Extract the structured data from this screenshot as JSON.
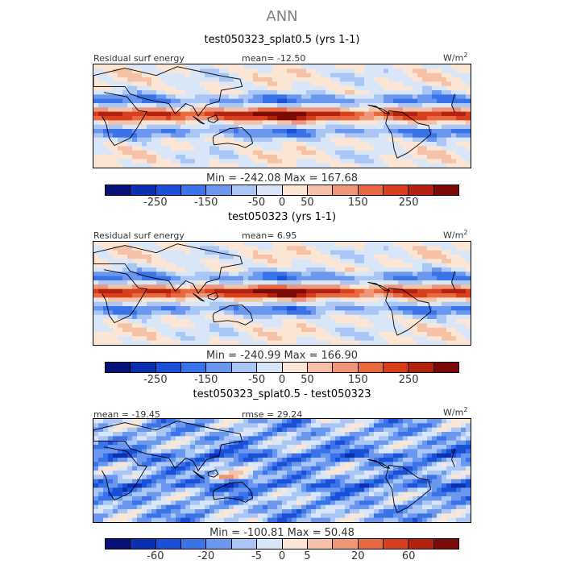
{
  "figure_title": "ANN",
  "palette": [
    "#08107a",
    "#0a2fb0",
    "#1a4fd8",
    "#3a72e8",
    "#6b97ef",
    "#a9c6f4",
    "#d8e6f8",
    "#fbe6d6",
    "#f6c2a7",
    "#ef957a",
    "#e8683f",
    "#d8401d",
    "#b3220f",
    "#7d0a05"
  ],
  "panels": [
    {
      "title": "test050323_splat0.5 (yrs 1-1)",
      "left_label": "Residual surf energy",
      "center_label": "mean=  -12.50",
      "units": "W/m",
      "units_sup": "2",
      "minmax": "Min = -242.08  Max = 167.68",
      "colorbar_ticks": [
        "-250",
        "-150",
        "-50",
        "0",
        "50",
        "150",
        "250"
      ],
      "kind": "field"
    },
    {
      "title": "test050323 (yrs 1-1)",
      "left_label": "Residual surf energy",
      "center_label": "mean=    6.95",
      "units": "W/m",
      "units_sup": "2",
      "minmax": "Min = -240.99  Max = 166.90",
      "colorbar_ticks": [
        "-250",
        "-150",
        "-50",
        "0",
        "50",
        "150",
        "250"
      ],
      "kind": "field"
    },
    {
      "title": "test050323_splat0.5 - test050323",
      "left_label": "mean = -19.45",
      "center_label": "rmse =  29.24",
      "units": "W/m",
      "units_sup": "2",
      "minmax": "Min = -100.81  Max =  50.48",
      "colorbar_ticks": [
        "-60",
        "-20",
        "-5",
        "0",
        "5",
        "20",
        "60"
      ],
      "kind": "diff"
    }
  ],
  "chart_data": [
    {
      "type": "heatmap",
      "title": "test050323_splat0.5 (yrs 1-1)",
      "variable": "Residual surf energy",
      "units": "W/m2",
      "mean": -12.5,
      "min": -242.08,
      "max": 167.68,
      "levels": [
        -250,
        -150,
        -50,
        0,
        50,
        150,
        250
      ]
    },
    {
      "type": "heatmap",
      "title": "test050323 (yrs 1-1)",
      "variable": "Residual surf energy",
      "units": "W/m2",
      "mean": 6.95,
      "min": -240.99,
      "max": 166.9,
      "levels": [
        -250,
        -150,
        -50,
        0,
        50,
        150,
        250
      ]
    },
    {
      "type": "heatmap",
      "title": "test050323_splat0.5 - test050323",
      "units": "W/m2",
      "mean": -19.45,
      "rmse": 29.24,
      "min": -100.81,
      "max": 50.48,
      "levels": [
        -60,
        -20,
        -5,
        0,
        5,
        20,
        60
      ]
    }
  ]
}
